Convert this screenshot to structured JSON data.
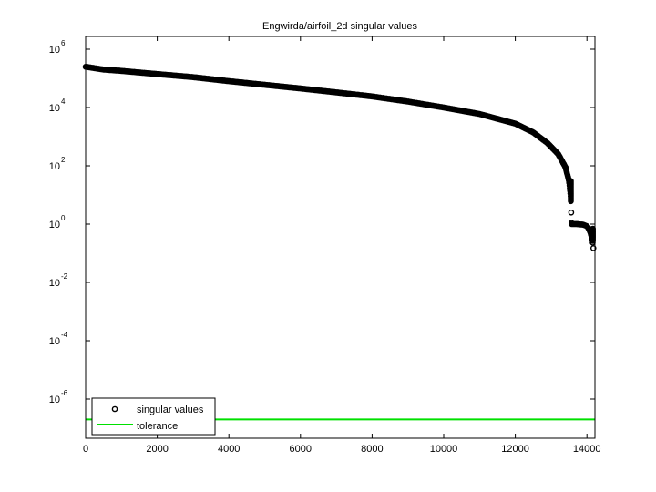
{
  "chart_data": {
    "type": "scatter",
    "title": "Engwirda/airfoil_2d singular values",
    "xlabel": "",
    "ylabel": "",
    "yscale": "log",
    "xlim": [
      0,
      14230
    ],
    "ylim_log10": [
      -7.5,
      6.2
    ],
    "x_ticks": [
      0,
      2000,
      4000,
      6000,
      8000,
      10000,
      12000,
      14000
    ],
    "x_tick_labels": [
      "0",
      "2000",
      "4000",
      "6000",
      "8000",
      "10000",
      "12000",
      "14000"
    ],
    "y_ticks_log10": [
      6,
      4,
      2,
      0,
      -2,
      -4,
      -6
    ],
    "y_tick_labels": [
      {
        "base": "10",
        "exp": "6"
      },
      {
        "base": "10",
        "exp": "4"
      },
      {
        "base": "10",
        "exp": "2"
      },
      {
        "base": "10",
        "exp": "0"
      },
      {
        "base": "10",
        "exp": "-2"
      },
      {
        "base": "10",
        "exp": "-4"
      },
      {
        "base": "10",
        "exp": "-6"
      }
    ],
    "grid": false,
    "legend_position": "lower left",
    "series": [
      {
        "name": "singular values",
        "marker": "o",
        "color": "#000000",
        "x": [
          1,
          500,
          1000,
          2000,
          3000,
          4000,
          5000,
          6000,
          7000,
          8000,
          9000,
          10000,
          11000,
          12000,
          12500,
          12900,
          13200,
          13400,
          13500,
          13550,
          13560,
          13570,
          13580,
          13600,
          13700,
          13800,
          13900,
          14000,
          14050,
          14100,
          14150,
          14180
        ],
        "values": [
          250000,
          200000,
          180000,
          140000,
          110000,
          80000,
          60000,
          45000,
          33000,
          24000,
          16000,
          10000,
          6000,
          2800,
          1400,
          600,
          250,
          90,
          30,
          8,
          2.5,
          1.0,
          1.0,
          1.0,
          1.0,
          0.98,
          0.95,
          0.85,
          0.7,
          0.5,
          0.3,
          0.15
        ]
      },
      {
        "name": "tolerance",
        "marker": "line",
        "color": "#00e000",
        "x": [
          0,
          14230
        ],
        "values": [
          2e-07,
          2e-07
        ]
      }
    ]
  },
  "legend": {
    "items": [
      {
        "label": "singular values",
        "type": "marker"
      },
      {
        "label": "tolerance",
        "type": "line"
      }
    ]
  },
  "colors": {
    "tolerance": "#00e000",
    "points": "#000000",
    "axes": "#000000"
  }
}
